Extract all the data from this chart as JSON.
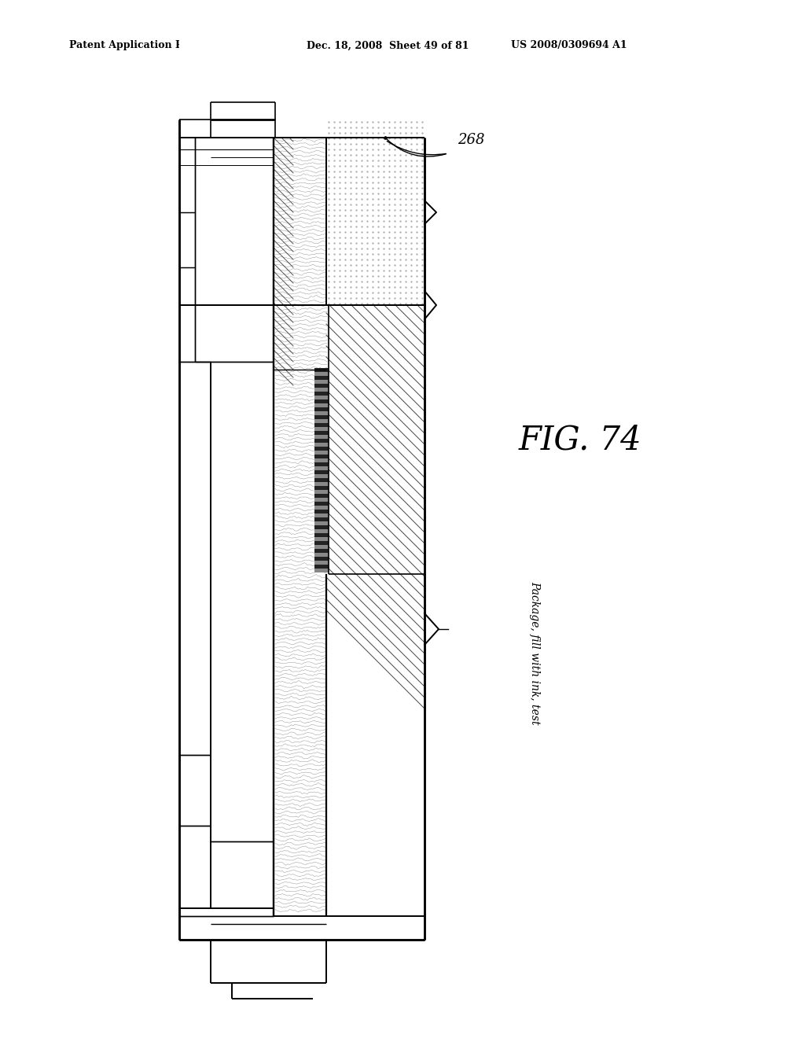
{
  "bg_color": "#ffffff",
  "header_text_left": "Patent Application Publication",
  "header_text_mid": "Dec. 18, 2008  Sheet 49 of 81",
  "header_text_right": "US 2008/0309694 A1",
  "fig_label": "FIG. 74",
  "label_268": "268",
  "label_package": "Package, fill with ink, test"
}
